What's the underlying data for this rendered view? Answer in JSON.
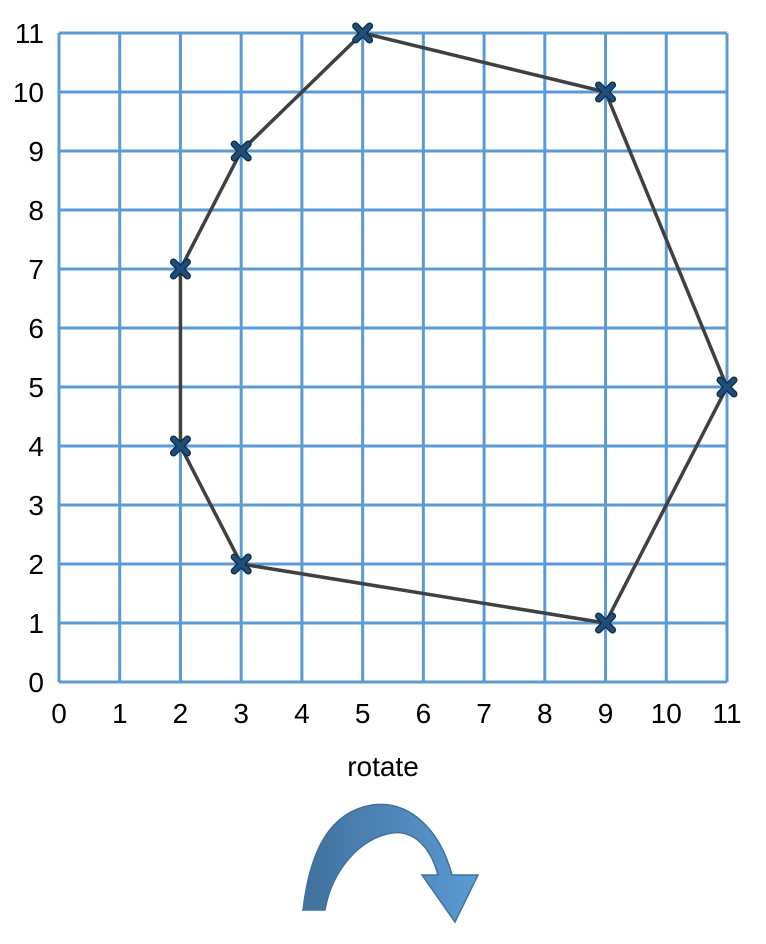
{
  "chart_data": {
    "type": "scatter",
    "x_ticks": [
      "0",
      "1",
      "2",
      "3",
      "4",
      "5",
      "6",
      "7",
      "8",
      "9",
      "10",
      "11"
    ],
    "y_ticks": [
      "0",
      "1",
      "2",
      "3",
      "4",
      "5",
      "6",
      "7",
      "8",
      "9",
      "10",
      "11"
    ],
    "xlim": [
      0,
      11
    ],
    "ylim": [
      0,
      11
    ],
    "grid": true,
    "polygon_closed": true,
    "points": [
      {
        "x": 5,
        "y": 11
      },
      {
        "x": 9,
        "y": 10
      },
      {
        "x": 11,
        "y": 5
      },
      {
        "x": 9,
        "y": 1
      },
      {
        "x": 3,
        "y": 2
      },
      {
        "x": 2,
        "y": 4
      },
      {
        "x": 2,
        "y": 7
      },
      {
        "x": 3,
        "y": 9
      }
    ]
  },
  "caption": "rotate",
  "arrow_icon": "clockwise-rotate-arrow-icon",
  "colors": {
    "grid": "#5b9bd5",
    "outline": "#404040",
    "marker": "#1f4e79",
    "arrow_dark": "#41719c",
    "arrow_light": "#5b9bd5"
  }
}
